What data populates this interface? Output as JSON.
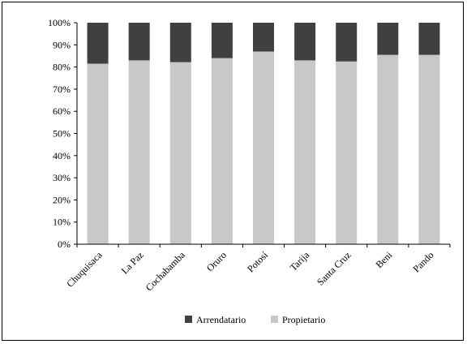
{
  "chart_data": {
    "type": "bar",
    "stacked": true,
    "percent": true,
    "categories": [
      "Chuquisaca",
      "La Paz",
      "Cochabamba",
      "Oruro",
      "Potosí",
      "Tarija",
      "Santa Cruz",
      "Beni",
      "Pando"
    ],
    "series": [
      {
        "name": "Propietario",
        "color": "#c8c8c8",
        "values": [
          81.5,
          83,
          82.2,
          84,
          87,
          83,
          82.5,
          85.5,
          85.5
        ]
      },
      {
        "name": "Arrendatario",
        "color": "#404040",
        "values": [
          18.5,
          17,
          17.8,
          16,
          13,
          17,
          17.5,
          14.5,
          14.5
        ]
      }
    ],
    "ylim": [
      0,
      100
    ],
    "yticks": [
      "0%",
      "10%",
      "20%",
      "30%",
      "40%",
      "50%",
      "60%",
      "70%",
      "80%",
      "90%",
      "100%"
    ],
    "legend_position": "bottom",
    "legend": [
      "Arrendatario",
      "Propietario"
    ],
    "grid": false
  }
}
